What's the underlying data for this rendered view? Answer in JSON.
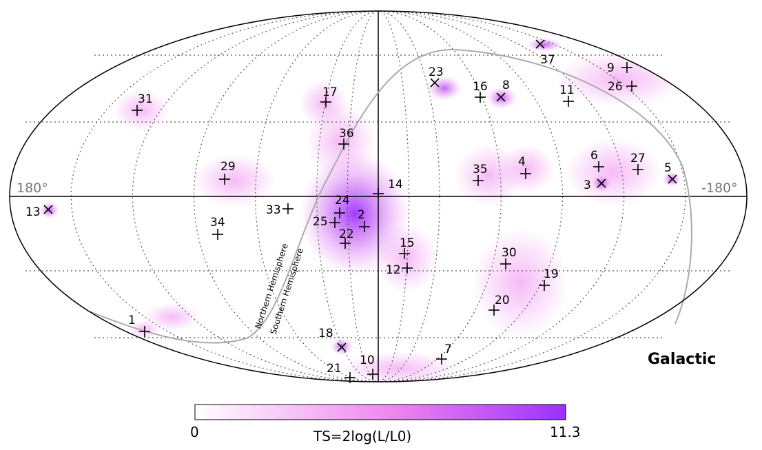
{
  "map": {
    "frame_label": "Galactic",
    "lon_left_label": "180°",
    "lon_right_label": "-180°",
    "projection": "mollweide",
    "hemisphere_labels": {
      "north": "Northern Hemisphere",
      "south": "Southern Hemisphere"
    },
    "colors": {
      "accent": "#9b30ff",
      "grid": "#555555",
      "boundary": "#aaaaaa"
    }
  },
  "colorbar": {
    "min_label": "0",
    "max_label": "11.3",
    "title": "TS=2log(L/L0)",
    "color_low": "#ffffff",
    "color_mid": "#ee82ee",
    "color_high": "#9b30ff"
  },
  "sources": [
    {
      "id": "1",
      "marker": "plus"
    },
    {
      "id": "2",
      "marker": "plus"
    },
    {
      "id": "3",
      "marker": "x"
    },
    {
      "id": "4",
      "marker": "plus"
    },
    {
      "id": "5",
      "marker": "x"
    },
    {
      "id": "6",
      "marker": "plus"
    },
    {
      "id": "7",
      "marker": "plus"
    },
    {
      "id": "8",
      "marker": "x"
    },
    {
      "id": "9",
      "marker": "plus"
    },
    {
      "id": "10",
      "marker": "plus"
    },
    {
      "id": "11",
      "marker": "plus"
    },
    {
      "id": "12",
      "marker": "plus"
    },
    {
      "id": "13",
      "marker": "x"
    },
    {
      "id": "14",
      "marker": "plus"
    },
    {
      "id": "15",
      "marker": "plus"
    },
    {
      "id": "16",
      "marker": "plus"
    },
    {
      "id": "17",
      "marker": "plus"
    },
    {
      "id": "18",
      "marker": "x"
    },
    {
      "id": "19",
      "marker": "plus"
    },
    {
      "id": "20",
      "marker": "plus"
    },
    {
      "id": "21",
      "marker": "plus"
    },
    {
      "id": "22",
      "marker": "plus"
    },
    {
      "id": "23",
      "marker": "x"
    },
    {
      "id": "24",
      "marker": "plus"
    },
    {
      "id": "25",
      "marker": "plus"
    },
    {
      "id": "26",
      "marker": "plus"
    },
    {
      "id": "27",
      "marker": "plus"
    },
    {
      "id": "29",
      "marker": "plus"
    },
    {
      "id": "30",
      "marker": "plus"
    },
    {
      "id": "31",
      "marker": "plus"
    },
    {
      "id": "33",
      "marker": "plus"
    },
    {
      "id": "34",
      "marker": "plus"
    },
    {
      "id": "35",
      "marker": "plus"
    },
    {
      "id": "36",
      "marker": "plus"
    },
    {
      "id": "37",
      "marker": "x"
    }
  ]
}
